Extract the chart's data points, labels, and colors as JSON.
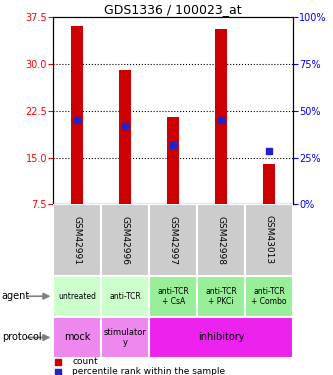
{
  "title": "GDS1336 / 100023_at",
  "samples": [
    "GSM42991",
    "GSM42996",
    "GSM42997",
    "GSM42998",
    "GSM43013"
  ],
  "bar_bottom": 7.5,
  "bar_tops": [
    36.0,
    29.0,
    21.5,
    35.5,
    14.0
  ],
  "percentile_values": [
    21.0,
    20.0,
    17.0,
    21.0,
    16.0
  ],
  "left_ylim": [
    7.5,
    37.5
  ],
  "left_yticks": [
    7.5,
    15.0,
    22.5,
    30.0,
    37.5
  ],
  "right_yticks": [
    0,
    25,
    50,
    75,
    100
  ],
  "bar_color": "#cc0000",
  "blue_color": "#2222cc",
  "agent_labels": [
    "untreated",
    "anti-TCR",
    "anti-TCR\n+ CsA",
    "anti-TCR\n+ PKCi",
    "anti-TCR\n+ Combo"
  ],
  "agent_bg_light": "#ccffcc",
  "agent_bg_dark": "#99ee99",
  "sample_bg": "#cccccc",
  "mock_color": "#ee88ee",
  "stimulatory_color": "#ee88ee",
  "inhibitory_color": "#ee22ee",
  "legend_count_color": "#cc0000",
  "legend_pct_color": "#2222cc"
}
